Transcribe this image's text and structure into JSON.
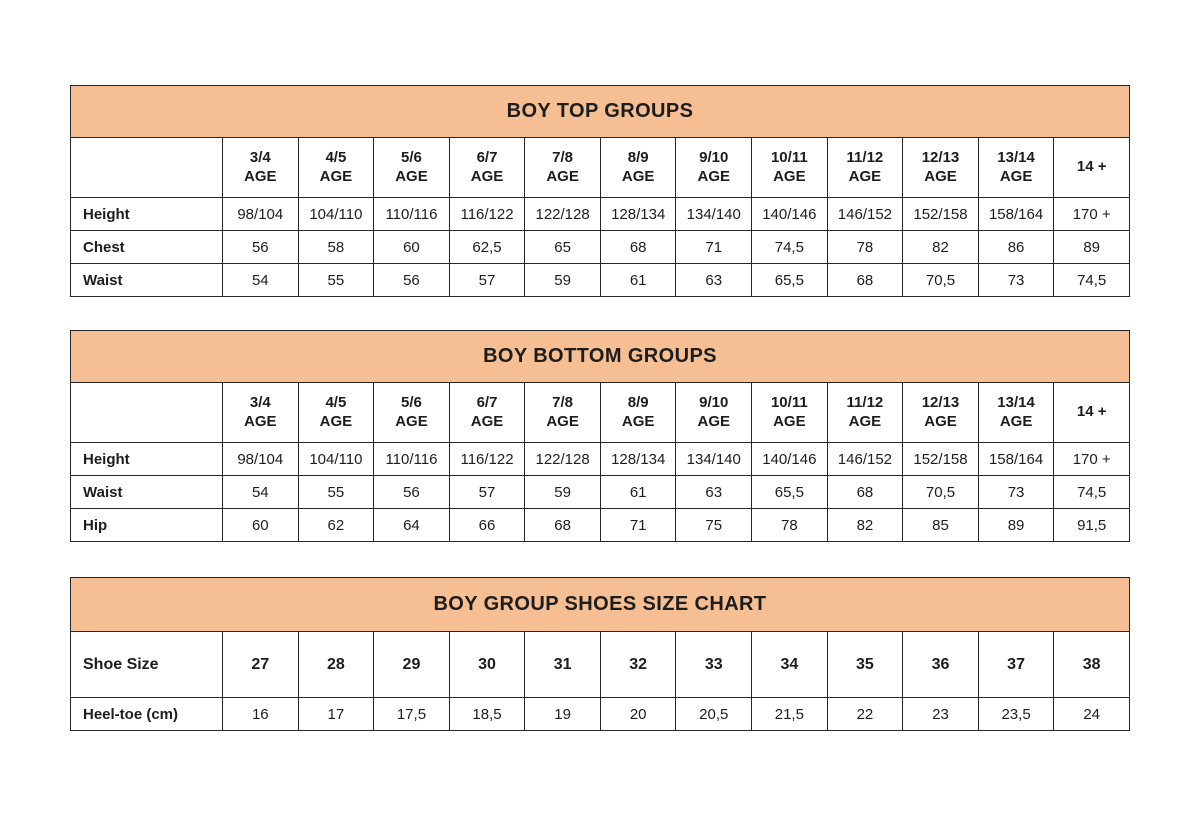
{
  "page": {
    "background": "#ffffff",
    "accent_color": "#f6be93",
    "border_color": "#262626",
    "text_color": "#1d1d1d"
  },
  "tables": [
    {
      "title": "BOY TOP GROUPS",
      "header_label": "",
      "columns": [
        {
          "line1": "3/4",
          "line2": "AGE"
        },
        {
          "line1": "4/5",
          "line2": "AGE"
        },
        {
          "line1": "5/6",
          "line2": "AGE"
        },
        {
          "line1": "6/7",
          "line2": "AGE"
        },
        {
          "line1": "7/8",
          "line2": "AGE"
        },
        {
          "line1": "8/9",
          "line2": "AGE"
        },
        {
          "line1": "9/10",
          "line2": "AGE"
        },
        {
          "line1": "10/11",
          "line2": "AGE"
        },
        {
          "line1": "11/12",
          "line2": "AGE"
        },
        {
          "line1": "12/13",
          "line2": "AGE"
        },
        {
          "line1": "13/14",
          "line2": "AGE"
        },
        {
          "line1": "14 +",
          "line2": ""
        }
      ],
      "rows": [
        {
          "label": "Height",
          "values": [
            "98/104",
            "104/110",
            "110/116",
            "116/122",
            "122/128",
            "128/134",
            "134/140",
            "140/146",
            "146/152",
            "152/158",
            "158/164",
            "170 +"
          ]
        },
        {
          "label": "Chest",
          "values": [
            "56",
            "58",
            "60",
            "62,5",
            "65",
            "68",
            "71",
            "74,5",
            "78",
            "82",
            "86",
            "89"
          ]
        },
        {
          "label": "Waist",
          "values": [
            "54",
            "55",
            "56",
            "57",
            "59",
            "61",
            "63",
            "65,5",
            "68",
            "70,5",
            "73",
            "74,5"
          ]
        }
      ]
    },
    {
      "title": "BOY BOTTOM GROUPS",
      "header_label": "",
      "columns": [
        {
          "line1": "3/4",
          "line2": "AGE"
        },
        {
          "line1": "4/5",
          "line2": "AGE"
        },
        {
          "line1": "5/6",
          "line2": "AGE"
        },
        {
          "line1": "6/7",
          "line2": "AGE"
        },
        {
          "line1": "7/8",
          "line2": "AGE"
        },
        {
          "line1": "8/9",
          "line2": "AGE"
        },
        {
          "line1": "9/10",
          "line2": "AGE"
        },
        {
          "line1": "10/11",
          "line2": "AGE"
        },
        {
          "line1": "11/12",
          "line2": "AGE"
        },
        {
          "line1": "12/13",
          "line2": "AGE"
        },
        {
          "line1": "13/14",
          "line2": "AGE"
        },
        {
          "line1": "14 +",
          "line2": ""
        }
      ],
      "rows": [
        {
          "label": "Height",
          "values": [
            "98/104",
            "104/110",
            "110/116",
            "116/122",
            "122/128",
            "128/134",
            "134/140",
            "140/146",
            "146/152",
            "152/158",
            "158/164",
            "170 +"
          ]
        },
        {
          "label": "Waist",
          "values": [
            "54",
            "55",
            "56",
            "57",
            "59",
            "61",
            "63",
            "65,5",
            "68",
            "70,5",
            "73",
            "74,5"
          ]
        },
        {
          "label": "Hip",
          "values": [
            "60",
            "62",
            "64",
            "66",
            "68",
            "71",
            "75",
            "78",
            "82",
            "85",
            "89",
            "91,5"
          ]
        }
      ]
    },
    {
      "title": "BOY GROUP SHOES SIZE CHART",
      "header_label": "Shoe Size",
      "columns": [
        {
          "line1": "27",
          "line2": ""
        },
        {
          "line1": "28",
          "line2": ""
        },
        {
          "line1": "29",
          "line2": ""
        },
        {
          "line1": "30",
          "line2": ""
        },
        {
          "line1": "31",
          "line2": ""
        },
        {
          "line1": "32",
          "line2": ""
        },
        {
          "line1": "33",
          "line2": ""
        },
        {
          "line1": "34",
          "line2": ""
        },
        {
          "line1": "35",
          "line2": ""
        },
        {
          "line1": "36",
          "line2": ""
        },
        {
          "line1": "37",
          "line2": ""
        },
        {
          "line1": "38",
          "line2": ""
        }
      ],
      "rows": [
        {
          "label": "Heel-toe (cm)",
          "values": [
            "16",
            "17",
            "17,5",
            "18,5",
            "19",
            "20",
            "20,5",
            "21,5",
            "22",
            "23",
            "23,5",
            "24"
          ]
        }
      ]
    }
  ]
}
